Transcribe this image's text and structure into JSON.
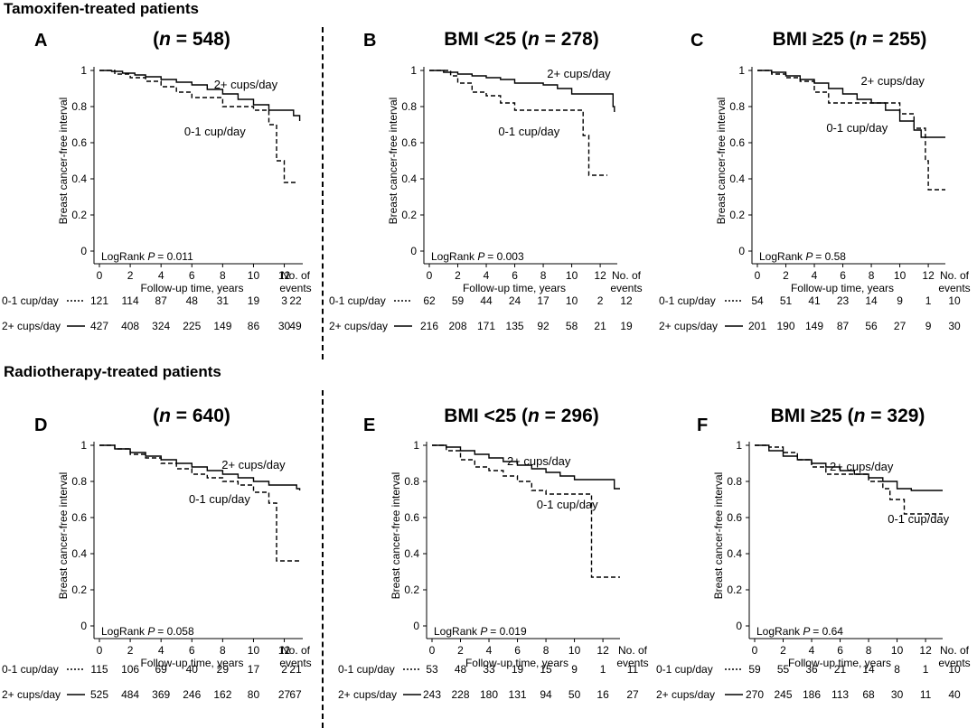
{
  "sections": {
    "tamoxifen_title": "Tamoxifen-treated patients",
    "radiotherapy_title": "Radiotherapy-treated patients"
  },
  "common": {
    "ylabel": "Breast cancer-free interval",
    "xlabel": "Follow-up time, years",
    "events_label_1": "No. of",
    "events_label_2": "events",
    "group1_label": "0-1 cup/day",
    "group2_label": "2+ cups/day",
    "logrank_prefix": "LogRank",
    "p_prefix": "P",
    "y_ticks": [
      "0",
      "0.2",
      "0.4",
      "0.6",
      "0.8",
      "1"
    ],
    "x_ticks": [
      "0",
      "2",
      "4",
      "6",
      "8",
      "10",
      "12"
    ]
  },
  "chart_data": [
    {
      "type": "line",
      "letter": "A",
      "title_prefix": "(",
      "title_n": "n",
      "title_suffix": " = 548)",
      "title": "(n = 548)",
      "xlabel": "Follow-up time, years",
      "ylabel": "Breast cancer-free interval",
      "xlim": [
        0,
        13.2
      ],
      "ylim": [
        0,
        1
      ],
      "p_value": "= 0.011",
      "series": [
        {
          "name": "2+ cups/day",
          "style": "solid",
          "x": [
            0,
            0.8,
            1.5,
            2.3,
            3,
            4,
            5,
            6,
            7,
            8,
            9,
            10,
            11,
            11.5,
            12,
            12.6,
            12.6,
            13
          ],
          "y": [
            1,
            0.995,
            0.985,
            0.975,
            0.965,
            0.95,
            0.935,
            0.92,
            0.895,
            0.87,
            0.84,
            0.81,
            0.78,
            0.78,
            0.78,
            0.78,
            0.75,
            0.72
          ]
        },
        {
          "name": "0-1 cup/day",
          "style": "dashed",
          "x": [
            0,
            1,
            2,
            3,
            4,
            5,
            6,
            7,
            8,
            9,
            10,
            10.5,
            11,
            11,
            11.5,
            11.5,
            12,
            12,
            12.8
          ],
          "y": [
            1,
            0.98,
            0.96,
            0.94,
            0.91,
            0.88,
            0.85,
            0.85,
            0.8,
            0.8,
            0.78,
            0.78,
            0.78,
            0.7,
            0.7,
            0.5,
            0.5,
            0.38,
            0.38
          ]
        }
      ],
      "annotations": {
        "group2": "2+ cups/day",
        "group1": "0-1 cup/day"
      },
      "risk_table": {
        "group1": [
          "121",
          "114",
          "87",
          "48",
          "31",
          "19",
          "3"
        ],
        "group1_events": "22",
        "group2": [
          "427",
          "408",
          "324",
          "225",
          "149",
          "86",
          "30"
        ],
        "group2_events": "49"
      }
    },
    {
      "type": "line",
      "letter": "B",
      "title_prefix": "BMI <25 (",
      "title_n": "n",
      "title_suffix": " = 278)",
      "title": "BMI <25 (n = 278)",
      "xlabel": "Follow-up time, years",
      "ylabel": "Breast cancer-free interval",
      "xlim": [
        0,
        13.2
      ],
      "ylim": [
        0,
        1
      ],
      "p_value": "= 0.003",
      "series": [
        {
          "name": "2+ cups/day",
          "style": "solid",
          "x": [
            0,
            1,
            2,
            3,
            4,
            5,
            6,
            7,
            8,
            9,
            10,
            11,
            12,
            12.9,
            12.9,
            13
          ],
          "y": [
            1,
            0.99,
            0.98,
            0.97,
            0.96,
            0.95,
            0.93,
            0.93,
            0.92,
            0.9,
            0.87,
            0.87,
            0.87,
            0.87,
            0.8,
            0.77
          ]
        },
        {
          "name": "0-1 cup/day",
          "style": "dashed",
          "x": [
            0,
            1.5,
            2,
            3,
            4,
            5,
            6,
            7,
            8,
            9,
            10,
            10.8,
            10.8,
            11.2,
            11.2,
            12.5
          ],
          "y": [
            1,
            0.97,
            0.93,
            0.88,
            0.86,
            0.82,
            0.78,
            0.78,
            0.78,
            0.78,
            0.78,
            0.78,
            0.64,
            0.64,
            0.42,
            0.42
          ]
        }
      ],
      "annotations": {
        "group2": "2+ cups/day",
        "group1": "0-1 cup/day"
      },
      "risk_table": {
        "group1": [
          "62",
          "59",
          "44",
          "24",
          "17",
          "10",
          "2"
        ],
        "group1_events": "12",
        "group2": [
          "216",
          "208",
          "171",
          "135",
          "92",
          "58",
          "21"
        ],
        "group2_events": "19"
      }
    },
    {
      "type": "line",
      "letter": "C",
      "title_prefix": "BMI ≥25 (",
      "title_n": "n",
      "title_suffix": " = 255)",
      "title": "BMI ≥25 (n = 255)",
      "xlabel": "Follow-up time, years",
      "ylabel": "Breast cancer-free interval",
      "xlim": [
        0,
        13.2
      ],
      "ylim": [
        0,
        1
      ],
      "p_value": "= 0.58",
      "series": [
        {
          "name": "2+ cups/day",
          "style": "solid",
          "x": [
            0,
            1,
            2,
            3,
            4,
            5,
            6,
            7,
            8,
            9,
            10,
            10.5,
            11,
            11.5,
            12,
            13.2
          ],
          "y": [
            1,
            0.99,
            0.97,
            0.95,
            0.93,
            0.9,
            0.87,
            0.84,
            0.82,
            0.78,
            0.72,
            0.72,
            0.67,
            0.63,
            0.63,
            0.63
          ]
        },
        {
          "name": "0-1 cup/day",
          "style": "dashed",
          "x": [
            0,
            1,
            2,
            3,
            4,
            5,
            6,
            7,
            8,
            9,
            10,
            11,
            11.8,
            11.8,
            12,
            12,
            13.2
          ],
          "y": [
            1,
            0.98,
            0.96,
            0.94,
            0.88,
            0.82,
            0.82,
            0.82,
            0.82,
            0.82,
            0.76,
            0.68,
            0.68,
            0.5,
            0.5,
            0.34,
            0.34
          ]
        }
      ],
      "annotations": {
        "group2": "2+ cups/day",
        "group1": "0-1 cup/day"
      },
      "risk_table": {
        "group1": [
          "54",
          "51",
          "41",
          "23",
          "14",
          "9",
          "1"
        ],
        "group1_events": "10",
        "group2": [
          "201",
          "190",
          "149",
          "87",
          "56",
          "27",
          "9"
        ],
        "group2_events": "30"
      }
    },
    {
      "type": "line",
      "letter": "D",
      "title_prefix": "(",
      "title_n": "n",
      "title_suffix": " = 640)",
      "title": "(n = 640)",
      "xlabel": "Follow-up time, years",
      "ylabel": "Breast cancer-free interval",
      "xlim": [
        0,
        13.2
      ],
      "ylim": [
        0,
        1
      ],
      "p_value": "= 0.058",
      "series": [
        {
          "name": "2+ cups/day",
          "style": "solid",
          "x": [
            0,
            1,
            2,
            3,
            4,
            5,
            6,
            7,
            8,
            9,
            10,
            11,
            12,
            12.8,
            13
          ],
          "y": [
            1,
            0.98,
            0.96,
            0.94,
            0.92,
            0.9,
            0.88,
            0.86,
            0.84,
            0.82,
            0.8,
            0.78,
            0.78,
            0.76,
            0.75
          ]
        },
        {
          "name": "0-1 cup/day",
          "style": "dashed",
          "x": [
            0,
            1,
            2,
            3,
            4,
            5,
            6,
            7,
            8,
            9,
            10,
            10.5,
            11,
            11,
            11.5,
            11.5,
            13
          ],
          "y": [
            1,
            0.98,
            0.95,
            0.93,
            0.9,
            0.87,
            0.84,
            0.82,
            0.8,
            0.78,
            0.74,
            0.74,
            0.74,
            0.68,
            0.68,
            0.36,
            0.36
          ]
        }
      ],
      "annotations": {
        "group2": "2+ cups/day",
        "group1": "0-1 cup/day"
      },
      "risk_table": {
        "group1": [
          "115",
          "106",
          "69",
          "40",
          "29",
          "17",
          "2"
        ],
        "group1_events": "21",
        "group2": [
          "525",
          "484",
          "369",
          "246",
          "162",
          "80",
          "27"
        ],
        "group2_events": "67"
      }
    },
    {
      "type": "line",
      "letter": "E",
      "title_prefix": "BMI <25 (",
      "title_n": "n",
      "title_suffix": " = 296)",
      "title": "BMI <25 (n = 296)",
      "xlabel": "Follow-up time, years",
      "ylabel": "Breast cancer-free interval",
      "xlim": [
        0,
        13.2
      ],
      "ylim": [
        0,
        1
      ],
      "p_value": "= 0.019",
      "series": [
        {
          "name": "2+ cups/day",
          "style": "solid",
          "x": [
            0,
            1,
            2,
            3,
            4,
            5,
            6,
            7,
            8,
            9,
            10,
            11,
            12,
            12.8,
            12.8,
            13.2
          ],
          "y": [
            1,
            0.99,
            0.97,
            0.95,
            0.93,
            0.91,
            0.89,
            0.87,
            0.85,
            0.83,
            0.81,
            0.81,
            0.81,
            0.81,
            0.76,
            0.76
          ]
        },
        {
          "name": "0-1 cup/day",
          "style": "dashed",
          "x": [
            0,
            1,
            2,
            3,
            4,
            5,
            6,
            7,
            8,
            9,
            10,
            11.2,
            11.2,
            13.2
          ],
          "y": [
            1,
            0.97,
            0.92,
            0.88,
            0.86,
            0.83,
            0.8,
            0.75,
            0.73,
            0.73,
            0.73,
            0.73,
            0.27,
            0.27
          ]
        }
      ],
      "annotations": {
        "group2": "2+ cups/day",
        "group1": "0-1 cup/day"
      },
      "risk_table": {
        "group1": [
          "53",
          "48",
          "33",
          "19",
          "15",
          "9",
          "1"
        ],
        "group1_events": "11",
        "group2": [
          "243",
          "228",
          "180",
          "131",
          "94",
          "50",
          "16"
        ],
        "group2_events": "27"
      }
    },
    {
      "type": "line",
      "letter": "F",
      "title_prefix": "BMI ≥25 (",
      "title_n": "n",
      "title_suffix": " = 329)",
      "title": "BMI ≥25 (n = 329)",
      "xlabel": "Follow-up time, years",
      "ylabel": "Breast cancer-free interval",
      "xlim": [
        0,
        13.2
      ],
      "ylim": [
        0,
        1
      ],
      "p_value": "= 0.64",
      "series": [
        {
          "name": "2+ cups/day",
          "style": "solid",
          "x": [
            0,
            1,
            2,
            3,
            4,
            5,
            6,
            7,
            8,
            9,
            10,
            11,
            12,
            13.2
          ],
          "y": [
            1,
            0.97,
            0.94,
            0.92,
            0.9,
            0.88,
            0.86,
            0.84,
            0.82,
            0.8,
            0.76,
            0.75,
            0.75,
            0.75
          ]
        },
        {
          "name": "0-1 cup/day",
          "style": "dashed",
          "x": [
            0,
            1,
            2,
            3,
            4,
            5,
            6,
            7,
            8,
            9,
            9.5,
            10,
            10.5,
            10.5,
            13.2
          ],
          "y": [
            1,
            0.99,
            0.96,
            0.92,
            0.88,
            0.84,
            0.84,
            0.84,
            0.8,
            0.76,
            0.7,
            0.7,
            0.7,
            0.62,
            0.62
          ]
        }
      ],
      "annotations": {
        "group2": "2+ cups/day",
        "group1": "0-1 cup/day"
      },
      "risk_table": {
        "group1": [
          "59",
          "55",
          "36",
          "21",
          "14",
          "8",
          "1"
        ],
        "group1_events": "10",
        "group2": [
          "270",
          "245",
          "186",
          "113",
          "68",
          "30",
          "11"
        ],
        "group2_events": "40"
      }
    }
  ]
}
